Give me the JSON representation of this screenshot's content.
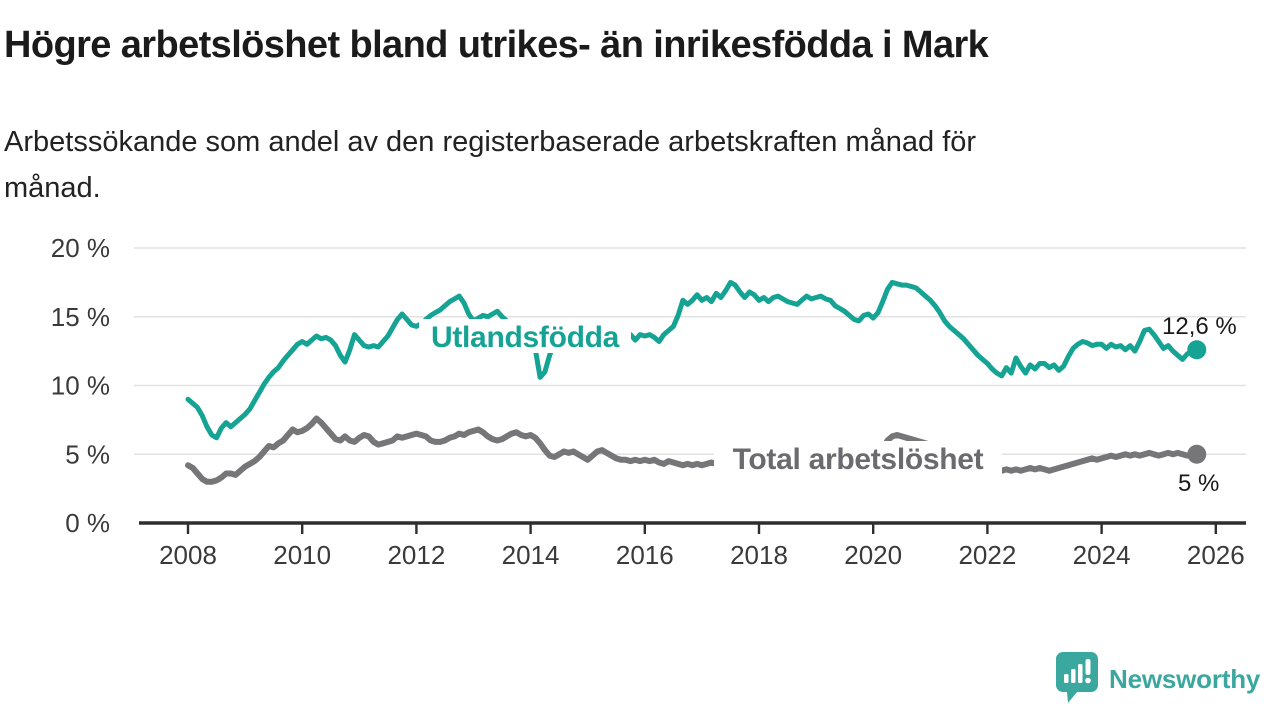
{
  "header": {
    "title": "Högre arbetslöshet bland utrikes- än inrikesfödda i Mark",
    "subtitle": "Arbetssökande som andel av den registerbaserade arbetskraften månad för månad.",
    "subtitle_line1": "Arbetssökande som andel av den registerbaserade arbetskraften månad för",
    "subtitle_line2": "månad."
  },
  "branding": {
    "logo_text": "Newsworthy",
    "logo_color": "#3ba8a0",
    "logo_icon": "bar-chart-speech-bubble-icon"
  },
  "chart_data": {
    "type": "line",
    "title": "Högre arbetslöshet bland utrikes- än inrikesfödda i Mark",
    "frequency": "monthly",
    "x_start": "2008-01",
    "x_end": "2025-09",
    "xlim": [
      2007.85,
      2026.55
    ],
    "ylim": [
      0,
      20
    ],
    "grid": "horizontal",
    "legend": "inline-labels",
    "x_ticks": [
      2008,
      2010,
      2012,
      2014,
      2016,
      2018,
      2020,
      2022,
      2024,
      2026
    ],
    "y_ticks": [
      {
        "value": 20,
        "label": "20 %"
      },
      {
        "value": 15,
        "label": "15 %"
      },
      {
        "value": 10,
        "label": "10 %"
      },
      {
        "value": 5,
        "label": "5 %"
      },
      {
        "value": 0,
        "label": "0 %"
      }
    ],
    "axis_color": "#2e2e2e",
    "grid_color": "#e2e2e2",
    "tick_label_color": "#3a3a3a",
    "value_label_color": "#1a1a1a",
    "series": [
      {
        "name": "Utlandsfödda",
        "color": "#15a394",
        "label_color": "#15a394",
        "end_value": 12.6,
        "end_label": "12,6 %",
        "values": [
          9.0,
          8.7,
          8.4,
          7.8,
          7.0,
          6.4,
          6.2,
          6.9,
          7.3,
          7.0,
          7.3,
          7.6,
          7.9,
          8.3,
          8.9,
          9.5,
          10.1,
          10.6,
          11.0,
          11.3,
          11.8,
          12.2,
          12.6,
          13.0,
          13.2,
          13.0,
          13.3,
          13.6,
          13.4,
          13.5,
          13.3,
          12.9,
          12.2,
          11.7,
          12.6,
          13.7,
          13.3,
          12.9,
          12.8,
          12.9,
          12.8,
          13.2,
          13.6,
          14.2,
          14.8,
          15.2,
          14.8,
          14.4,
          14.3,
          14.5,
          14.8,
          15.1,
          15.3,
          15.5,
          15.8,
          16.1,
          16.3,
          16.5,
          16.0,
          15.2,
          14.7,
          14.9,
          15.1,
          15.0,
          15.2,
          15.4,
          15.0,
          14.7,
          14.4,
          14.2,
          14.0,
          13.8,
          13.6,
          12.6,
          10.6,
          11.0,
          12.2,
          13.1,
          13.4,
          13.5,
          13.3,
          13.5,
          13.4,
          13.5,
          13.4,
          13.6,
          13.5,
          13.3,
          13.5,
          13.7,
          13.5,
          13.8,
          13.5,
          13.7,
          13.3,
          13.7,
          13.6,
          13.7,
          13.5,
          13.2,
          13.7,
          14.0,
          14.3,
          15.1,
          16.2,
          15.9,
          16.2,
          16.6,
          16.2,
          16.4,
          16.1,
          16.7,
          16.4,
          16.9,
          17.5,
          17.3,
          16.8,
          16.4,
          16.8,
          16.6,
          16.2,
          16.4,
          16.1,
          16.4,
          16.5,
          16.3,
          16.1,
          16.0,
          15.9,
          16.2,
          16.5,
          16.3,
          16.4,
          16.5,
          16.3,
          16.2,
          15.8,
          15.6,
          15.4,
          15.1,
          14.8,
          14.7,
          15.1,
          15.2,
          14.9,
          15.3,
          16.1,
          17.0,
          17.5,
          17.4,
          17.3,
          17.3,
          17.2,
          17.1,
          16.8,
          16.5,
          16.2,
          15.8,
          15.3,
          14.7,
          14.3,
          14.0,
          13.7,
          13.4,
          13.0,
          12.6,
          12.2,
          11.9,
          11.6,
          11.2,
          10.9,
          10.7,
          11.3,
          10.9,
          12.0,
          11.4,
          10.9,
          11.5,
          11.2,
          11.6,
          11.6,
          11.3,
          11.5,
          11.1,
          11.4,
          12.1,
          12.7,
          13.0,
          13.2,
          13.1,
          12.9,
          13.0,
          13.0,
          12.7,
          13.0,
          12.8,
          12.9,
          12.6,
          12.9,
          12.5,
          13.2,
          14.0,
          14.1,
          13.7,
          13.2,
          12.7,
          12.9,
          12.5,
          12.2,
          11.9,
          12.3,
          12.5,
          12.6
        ]
      },
      {
        "name": "Total arbetslöshet",
        "color": "#767679",
        "label_color": "#6b6b6f",
        "end_value": 5,
        "end_label": "5 %",
        "values": [
          4.2,
          4.0,
          3.6,
          3.2,
          3.0,
          3.0,
          3.1,
          3.3,
          3.6,
          3.6,
          3.5,
          3.8,
          4.1,
          4.3,
          4.5,
          4.8,
          5.2,
          5.6,
          5.5,
          5.8,
          6.0,
          6.4,
          6.8,
          6.6,
          6.7,
          6.9,
          7.2,
          7.6,
          7.3,
          6.9,
          6.5,
          6.1,
          6.0,
          6.3,
          6.0,
          5.9,
          6.2,
          6.4,
          6.3,
          5.9,
          5.7,
          5.8,
          5.9,
          6.0,
          6.3,
          6.2,
          6.3,
          6.4,
          6.5,
          6.4,
          6.3,
          6.0,
          5.9,
          5.9,
          6.0,
          6.2,
          6.3,
          6.5,
          6.4,
          6.6,
          6.7,
          6.8,
          6.6,
          6.3,
          6.1,
          6.0,
          6.1,
          6.3,
          6.5,
          6.6,
          6.4,
          6.3,
          6.4,
          6.2,
          5.8,
          5.3,
          4.9,
          4.8,
          5.0,
          5.2,
          5.1,
          5.2,
          5.0,
          4.8,
          4.6,
          4.9,
          5.2,
          5.3,
          5.1,
          4.9,
          4.7,
          4.6,
          4.6,
          4.5,
          4.6,
          4.5,
          4.6,
          4.5,
          4.6,
          4.4,
          4.3,
          4.5,
          4.4,
          4.3,
          4.2,
          4.3,
          4.2,
          4.3,
          4.2,
          4.3,
          4.4,
          4.3,
          4.2,
          4.3,
          4.4,
          4.5,
          4.6,
          4.5,
          4.6,
          4.5,
          4.6,
          4.5,
          4.4,
          4.5,
          4.6,
          4.5,
          4.4,
          4.5,
          4.6,
          4.7,
          4.6,
          4.7,
          4.6,
          4.7,
          4.8,
          4.7,
          4.6,
          4.7,
          4.8,
          4.7,
          4.6,
          4.5,
          4.6,
          4.7,
          4.8,
          4.9,
          5.4,
          6.0,
          6.3,
          6.4,
          6.3,
          6.2,
          6.1,
          6.0,
          5.9,
          5.8,
          5.7,
          5.6,
          5.4,
          5.2,
          5.0,
          4.8,
          4.6,
          4.5,
          4.3,
          4.2,
          4.1,
          4.0,
          3.9,
          3.9,
          3.8,
          3.8,
          3.9,
          3.8,
          3.9,
          3.8,
          3.9,
          4.0,
          3.9,
          4.0,
          3.9,
          3.8,
          3.9,
          4.0,
          4.1,
          4.2,
          4.3,
          4.4,
          4.5,
          4.6,
          4.7,
          4.6,
          4.7,
          4.8,
          4.9,
          4.8,
          4.9,
          5.0,
          4.9,
          5.0,
          4.9,
          5.0,
          5.1,
          5.0,
          4.9,
          5.0,
          5.1,
          5.0,
          5.1,
          5.0,
          4.9,
          5.0,
          5.0
        ]
      }
    ]
  }
}
